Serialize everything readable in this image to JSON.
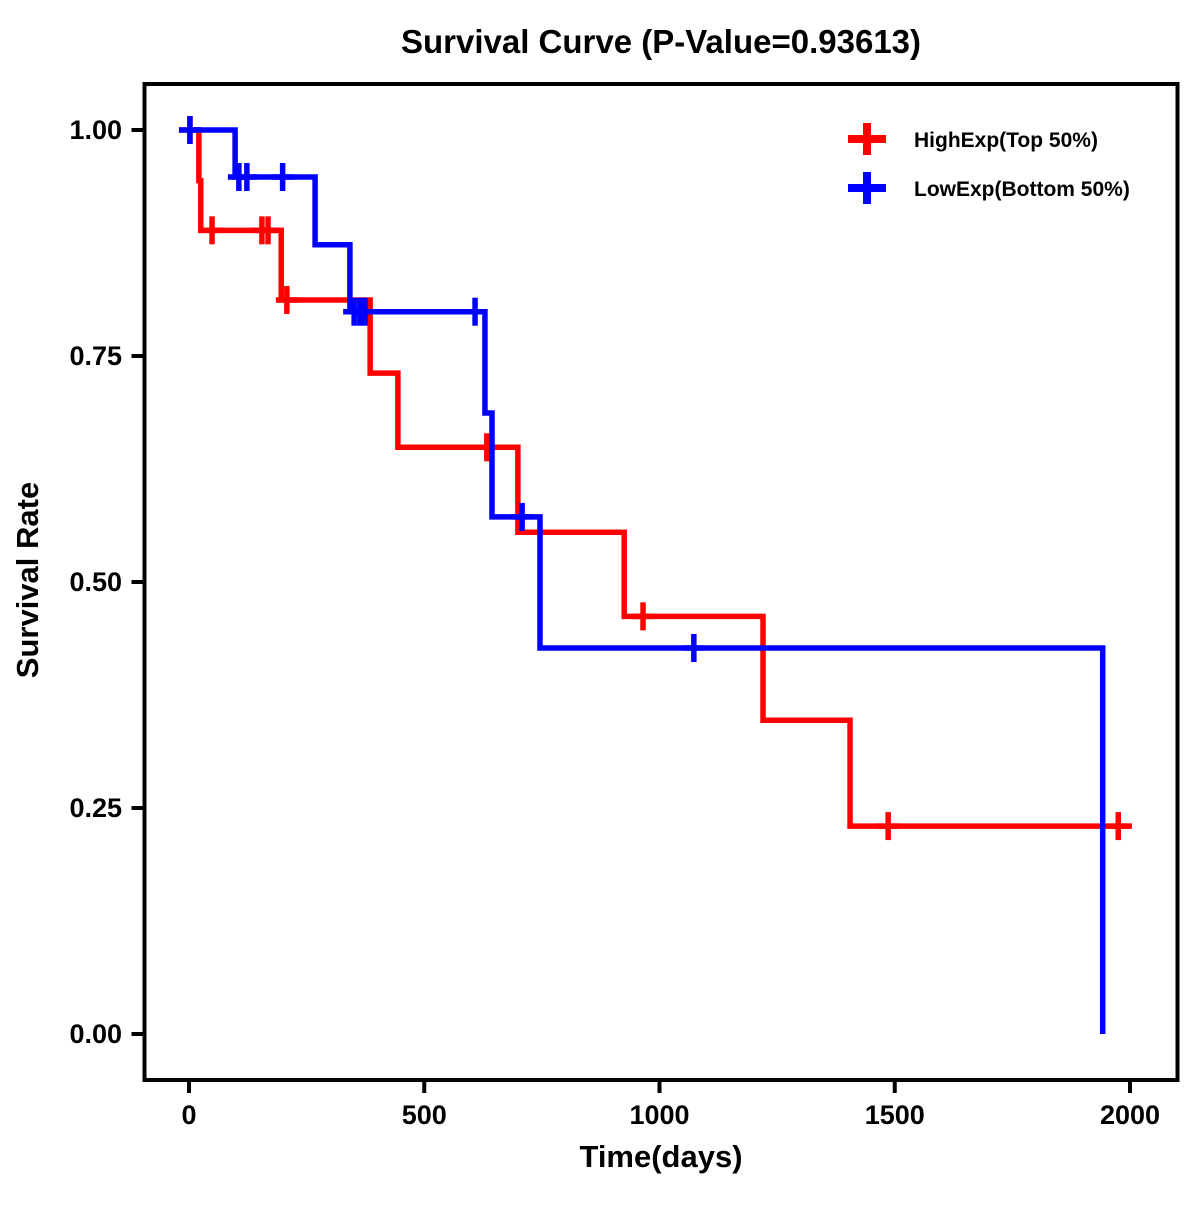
{
  "chart_data": {
    "type": "line",
    "subtype": "kaplan-meier-step",
    "title": "Survival Curve (P-Value=0.93613)",
    "xlabel": "Time(days)",
    "ylabel": "Survival Rate",
    "xlim": [
      0,
      2000
    ],
    "ylim": [
      0.0,
      1.0
    ],
    "grid": false,
    "legend_position": "top-right-inside",
    "x_axis": {
      "tick_values": [
        0,
        500,
        1000,
        1500,
        2000
      ],
      "tick_labels": [
        "0",
        "500",
        "1000",
        "1500",
        "2000"
      ]
    },
    "y_axis": {
      "tick_values": [
        0.0,
        0.25,
        0.5,
        0.75,
        1.0
      ],
      "tick_labels": [
        "0.00",
        "0.25",
        "0.50",
        "0.75",
        "1.00"
      ]
    },
    "colors": {
      "frame": "#000000",
      "background": "#ffffff"
    },
    "series": [
      {
        "name": "HighExp(Top 50%)",
        "color": "#ff0000",
        "steps": [
          [
            0,
            1.0
          ],
          [
            21,
            0.944
          ],
          [
            25,
            0.889
          ],
          [
            196,
            0.812
          ],
          [
            385,
            0.731
          ],
          [
            444,
            0.649
          ],
          [
            699,
            0.555
          ],
          [
            925,
            0.462
          ],
          [
            1220,
            0.347
          ],
          [
            1405,
            0.23
          ]
        ],
        "end_time": 2004,
        "censors": [
          [
            2,
            1.0
          ],
          [
            49,
            0.889
          ],
          [
            155,
            0.889
          ],
          [
            168,
            0.889
          ],
          [
            208,
            0.812
          ],
          [
            633,
            0.649
          ],
          [
            965,
            0.462
          ],
          [
            1486,
            0.23
          ],
          [
            1975,
            0.23
          ]
        ]
      },
      {
        "name": "LowExp(Bottom 50%)",
        "color": "#0000ff",
        "steps": [
          [
            0,
            1.0
          ],
          [
            98,
            0.948
          ],
          [
            268,
            0.873
          ],
          [
            342,
            0.799
          ],
          [
            629,
            0.687
          ],
          [
            644,
            0.572
          ],
          [
            746,
            0.427
          ],
          [
            1942,
            0.0
          ]
        ],
        "end_time": 1942,
        "censors": [
          [
            2,
            1.0
          ],
          [
            106,
            0.948
          ],
          [
            123,
            0.948
          ],
          [
            199,
            0.948
          ],
          [
            351,
            0.799
          ],
          [
            363,
            0.799
          ],
          [
            374,
            0.799
          ],
          [
            608,
            0.799
          ],
          [
            708,
            0.572
          ],
          [
            1073,
            0.427
          ]
        ]
      }
    ]
  }
}
